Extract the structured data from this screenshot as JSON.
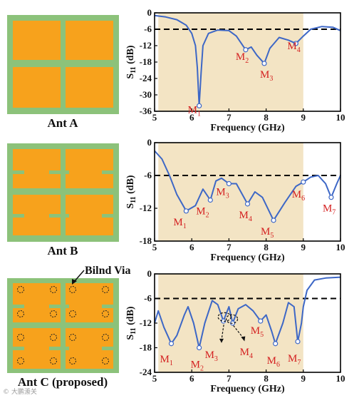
{
  "colors": {
    "substrate": "#8cc27a",
    "patch": "#f7a21c",
    "band": "#f3e4c4",
    "curve": "#3d67c6",
    "marker_text": "#d42020",
    "threshold": "#000000"
  },
  "figure": {
    "via_label": "Bilnd Via",
    "watermark": "© 大鹏潫关"
  },
  "antennas": [
    {
      "caption": "Ant A",
      "variant": "plain"
    },
    {
      "caption": "Ant B",
      "variant": "slotted"
    },
    {
      "caption": "Ant C (proposed)",
      "variant": "slotted-vias"
    }
  ],
  "chart_data": [
    {
      "type": "line",
      "xlabel": "Frequency (GHz)",
      "ylabel": "S11 (dB)",
      "xlim": [
        5,
        10
      ],
      "ylim": [
        -36,
        0
      ],
      "xticks": [
        5,
        6,
        7,
        8,
        9,
        10
      ],
      "yticks": [
        0,
        -6,
        -12,
        -18,
        -24,
        -30,
        -36
      ],
      "band": [
        5.1,
        9.0
      ],
      "threshold": -6,
      "x": [
        5.0,
        5.3,
        5.6,
        5.85,
        6.0,
        6.1,
        6.15,
        6.2,
        6.25,
        6.3,
        6.45,
        6.7,
        7.0,
        7.2,
        7.45,
        7.6,
        7.75,
        7.95,
        8.1,
        8.35,
        8.6,
        8.8,
        9.0,
        9.2,
        9.5,
        9.8,
        10.0
      ],
      "y": [
        -1.0,
        -1.5,
        -2.5,
        -4.5,
        -7.5,
        -12.0,
        -20.0,
        -34.0,
        -22.0,
        -12.0,
        -7.5,
        -6.3,
        -6.5,
        -8.5,
        -13.5,
        -12.5,
        -15.5,
        -18.5,
        -13.0,
        -9.0,
        -10.0,
        -11.2,
        -8.5,
        -6.0,
        -5.0,
        -5.3,
        -6.5
      ],
      "markers": [
        {
          "label": "M1",
          "x": 6.2,
          "y": -34.0
        },
        {
          "label": "M2",
          "x": 7.45,
          "y": -13.5
        },
        {
          "label": "M3",
          "x": 7.95,
          "y": -18.5
        },
        {
          "label": "M4",
          "x": 8.8,
          "y": -11.2
        }
      ]
    },
    {
      "type": "line",
      "xlabel": "Frequency (GHz)",
      "ylabel": "S11 (dB)",
      "xlim": [
        5,
        10
      ],
      "ylim": [
        -18,
        0
      ],
      "xticks": [
        5,
        6,
        7,
        8,
        9,
        10
      ],
      "yticks": [
        0,
        -6,
        -12,
        -18
      ],
      "band": [
        5.1,
        9.0
      ],
      "threshold": -6,
      "x": [
        5.0,
        5.2,
        5.4,
        5.6,
        5.85,
        6.1,
        6.3,
        6.5,
        6.65,
        6.8,
        7.0,
        7.2,
        7.5,
        7.7,
        7.9,
        8.2,
        8.5,
        8.8,
        9.0,
        9.2,
        9.4,
        9.6,
        9.75,
        9.9,
        10.0
      ],
      "y": [
        -1.5,
        -3.0,
        -6.0,
        -9.5,
        -12.5,
        -11.5,
        -8.5,
        -10.5,
        -7.0,
        -6.5,
        -7.5,
        -7.5,
        -11.2,
        -9.0,
        -10.0,
        -14.2,
        -11.0,
        -8.0,
        -7.2,
        -6.3,
        -6.0,
        -7.5,
        -10.0,
        -7.5,
        -6.0
      ],
      "markers": [
        {
          "label": "M1",
          "x": 5.85,
          "y": -12.5
        },
        {
          "label": "M2",
          "x": 6.5,
          "y": -10.5
        },
        {
          "label": "M3",
          "x": 7.0,
          "y": -7.5
        },
        {
          "label": "M4",
          "x": 7.5,
          "y": -11.2
        },
        {
          "label": "M5",
          "x": 8.2,
          "y": -14.2
        },
        {
          "label": "M6",
          "x": 9.0,
          "y": -7.2
        },
        {
          "label": "M7",
          "x": 9.75,
          "y": -10.0
        }
      ]
    },
    {
      "type": "line",
      "xlabel": "Frequency (GHz)",
      "ylabel": "S11 (dB)",
      "xlim": [
        5,
        10
      ],
      "ylim": [
        -24,
        0
      ],
      "xticks": [
        5,
        6,
        7,
        8,
        9,
        10
      ],
      "yticks": [
        0,
        -6,
        -12,
        -18,
        -24
      ],
      "band": [
        5.1,
        9.0
      ],
      "threshold": -6,
      "x": [
        5.0,
        5.1,
        5.25,
        5.45,
        5.6,
        5.8,
        5.9,
        6.05,
        6.2,
        6.35,
        6.55,
        6.7,
        6.85,
        7.0,
        7.1,
        7.25,
        7.45,
        7.65,
        7.85,
        8.0,
        8.15,
        8.25,
        8.45,
        8.6,
        8.75,
        8.85,
        8.95,
        9.0,
        9.1,
        9.3,
        9.6,
        10.0
      ],
      "y": [
        -12.0,
        -9.0,
        -13.0,
        -17.0,
        -15.0,
        -10.0,
        -8.0,
        -12.0,
        -18.0,
        -12.0,
        -6.5,
        -7.5,
        -11.5,
        -8.0,
        -12.0,
        -8.5,
        -7.5,
        -9.0,
        -11.5,
        -10.0,
        -14.0,
        -17.0,
        -12.0,
        -7.0,
        -8.0,
        -16.5,
        -12.0,
        -8.0,
        -4.0,
        -1.5,
        -1.0,
        -0.8
      ],
      "markers": [
        {
          "label": "M1",
          "x": 5.45,
          "y": -17.0
        },
        {
          "label": "M2",
          "x": 6.2,
          "y": -18.0
        },
        {
          "label": "M3",
          "x": 6.85,
          "y": -11.5
        },
        {
          "label": "M4",
          "x": 7.1,
          "y": -12.0
        },
        {
          "label": "M5",
          "x": 7.85,
          "y": -11.5
        },
        {
          "label": "M6",
          "x": 8.25,
          "y": -17.0
        },
        {
          "label": "M7",
          "x": 8.85,
          "y": -16.5
        }
      ]
    }
  ]
}
